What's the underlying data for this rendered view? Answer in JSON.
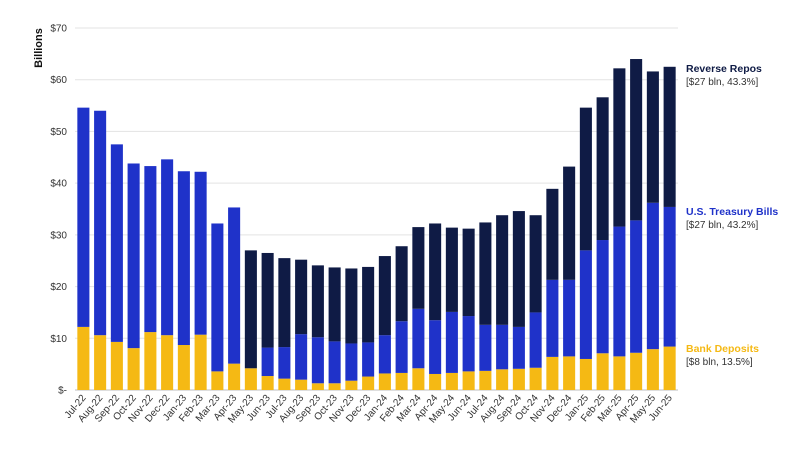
{
  "chart_data": {
    "type": "bar",
    "stacked": true,
    "ylabel": "Billions",
    "ylim": [
      0,
      70
    ],
    "yticks": [
      0,
      10,
      20,
      30,
      40,
      50,
      60,
      70
    ],
    "ytick_labels": [
      "$-",
      "$10",
      "$20",
      "$30",
      "$40",
      "$50",
      "$60",
      "$70"
    ],
    "grid": true,
    "categories": [
      "Jul-22",
      "Aug-22",
      "Sep-22",
      "Oct-22",
      "Nov-22",
      "Dec-22",
      "Jan-23",
      "Feb-23",
      "Mar-23",
      "Apr-23",
      "May-23",
      "Jun-23",
      "Jul-23",
      "Aug-23",
      "Sep-23",
      "Oct-23",
      "Nov-23",
      "Dec-23",
      "Jan-24",
      "Feb-24",
      "Mar-24",
      "Apr-24",
      "May-24",
      "Jun-24",
      "Jul-24",
      "Aug-24",
      "Sep-24",
      "Oct-24",
      "Nov-24",
      "Dec-24",
      "Jan-25",
      "Feb-25",
      "Mar-25",
      "Apr-25",
      "May-25",
      "Jun-25"
    ],
    "series": [
      {
        "name": "Bank Deposits",
        "color": "#f5b914",
        "values": [
          12.2,
          10.6,
          9.3,
          8.1,
          11.2,
          10.6,
          8.7,
          10.7,
          3.6,
          5.1,
          4.2,
          2.7,
          2.2,
          2.0,
          1.3,
          1.3,
          1.8,
          2.6,
          3.2,
          3.3,
          4.2,
          3.1,
          3.3,
          3.6,
          3.7,
          4.0,
          4.1,
          4.3,
          6.4,
          6.5,
          6.0,
          7.1,
          6.5,
          7.2,
          7.9,
          8.4
        ]
      },
      {
        "name": "U.S. Treasury Bills",
        "color": "#1f32c9",
        "values": [
          42.4,
          43.4,
          38.2,
          35.7,
          32.1,
          34.0,
          33.6,
          31.5,
          28.6,
          30.2,
          0.0,
          5.5,
          6.1,
          8.8,
          8.9,
          8.1,
          7.2,
          6.6,
          7.4,
          10.0,
          11.5,
          10.4,
          11.8,
          10.7,
          8.9,
          8.6,
          8.1,
          10.7,
          14.9,
          14.8,
          21.0,
          21.9,
          25.1,
          25.6,
          28.3,
          27.0
        ]
      },
      {
        "name": "Reverse Repos",
        "color": "#0f1b45",
        "values": [
          0,
          0,
          0,
          0,
          0,
          0,
          0,
          0,
          0,
          0,
          22.8,
          18.3,
          17.2,
          14.4,
          13.9,
          14.3,
          14.5,
          14.6,
          15.3,
          14.5,
          15.8,
          18.7,
          16.3,
          16.9,
          19.8,
          21.2,
          22.4,
          18.8,
          17.6,
          21.9,
          27.6,
          27.6,
          30.6,
          31.2,
          25.4,
          27.1
        ]
      }
    ],
    "legend": [
      {
        "title": "Reverse Repos",
        "detail": "[$27 bln, 43.3%]",
        "color": "#0f1b45"
      },
      {
        "title": "U.S. Treasury Bills",
        "detail": "[$27 bln, 43.2%]",
        "color": "#1f32c9"
      },
      {
        "title": "Bank Deposits",
        "detail": "[$8 bln, 13.5%]",
        "color": "#f5b914"
      }
    ]
  }
}
